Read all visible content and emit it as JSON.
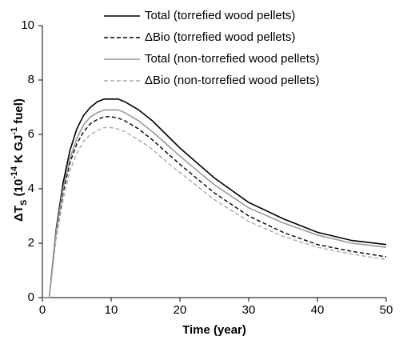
{
  "chart_data": {
    "type": "line",
    "xlabel": "Time (year)",
    "ylabel_parts": [
      "ΔT",
      "S",
      " (10",
      "-14",
      " K GJ",
      "-1",
      " fuel)"
    ],
    "x": [
      0,
      1,
      2,
      3,
      4,
      5,
      6,
      7,
      8,
      9,
      10,
      11,
      12,
      14,
      16,
      18,
      20,
      25,
      30,
      35,
      40,
      45,
      50
    ],
    "series": [
      {
        "name": "Total (torrefied wood pellets)",
        "color": "#000000",
        "dash": false,
        "values": [
          0,
          0,
          2.5,
          4.2,
          5.4,
          6.2,
          6.7,
          7.0,
          7.2,
          7.3,
          7.3,
          7.3,
          7.2,
          6.9,
          6.5,
          6.0,
          5.5,
          4.4,
          3.5,
          2.9,
          2.4,
          2.1,
          1.95
        ]
      },
      {
        "name": "ΔBio (torrefied wood pellets)",
        "color": "#000000",
        "dash": true,
        "values": [
          0,
          0,
          2.3,
          3.85,
          4.95,
          5.65,
          6.1,
          6.4,
          6.55,
          6.65,
          6.65,
          6.6,
          6.5,
          6.2,
          5.8,
          5.35,
          4.9,
          3.85,
          3.0,
          2.4,
          1.95,
          1.7,
          1.5
        ]
      },
      {
        "name": "Total (non-torrefied wood pellets)",
        "color": "#999999",
        "dash": false,
        "values": [
          0,
          0,
          2.4,
          4.0,
          5.1,
          5.85,
          6.35,
          6.65,
          6.8,
          6.9,
          6.9,
          6.9,
          6.8,
          6.5,
          6.1,
          5.65,
          5.2,
          4.15,
          3.3,
          2.75,
          2.3,
          2.0,
          1.85
        ]
      },
      {
        "name": "ΔBio (non-torrefied wood pellets)",
        "color": "#aaaaaa",
        "dash": true,
        "values": [
          0,
          0,
          2.15,
          3.6,
          4.65,
          5.3,
          5.75,
          6.0,
          6.15,
          6.25,
          6.25,
          6.2,
          6.1,
          5.8,
          5.45,
          5.0,
          4.6,
          3.6,
          2.8,
          2.25,
          1.85,
          1.6,
          1.4
        ]
      }
    ],
    "xlim": [
      0,
      50
    ],
    "xticks": [
      0,
      10,
      20,
      30,
      40,
      50
    ],
    "ylim": [
      0,
      10
    ],
    "yticks": [
      0,
      2,
      4,
      6,
      8,
      10
    ],
    "legend": "top"
  }
}
